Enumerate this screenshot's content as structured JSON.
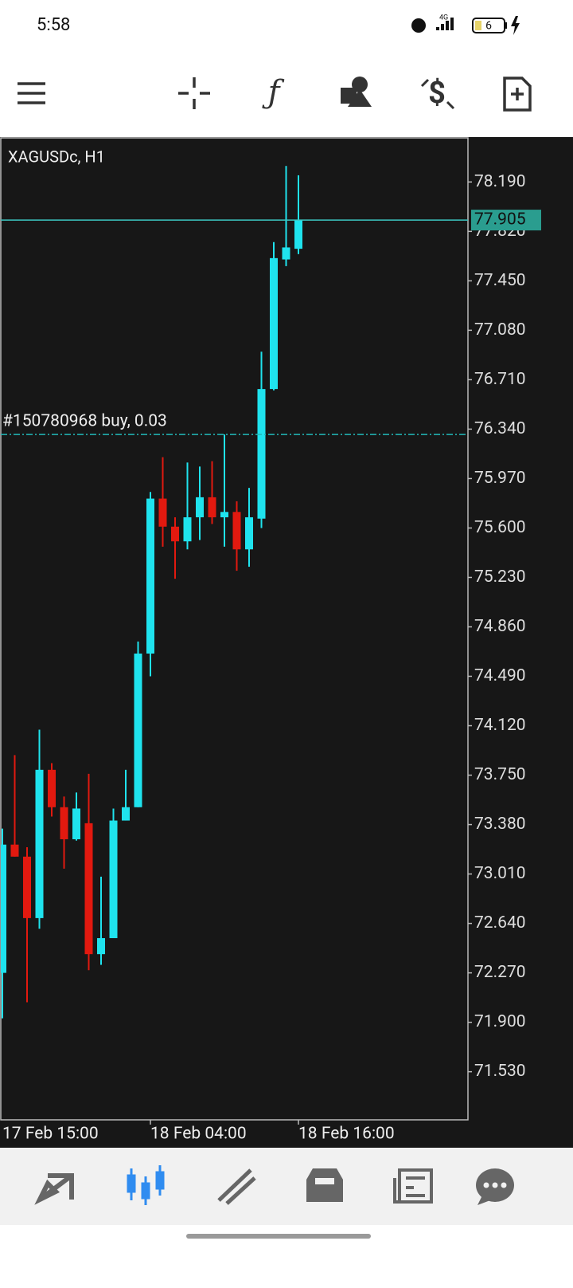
{
  "status_bar": {
    "time": "5:58",
    "battery": "6"
  },
  "chart_data": {
    "type": "candlestick",
    "title": "XAGUSDc, H1",
    "categories": [
      "17 Feb 15:00",
      null,
      null,
      null,
      null,
      null,
      null,
      null,
      null,
      null,
      null,
      null,
      "18 Feb 04:00",
      null,
      null,
      null,
      null,
      null,
      null,
      null,
      null,
      null,
      null,
      null,
      "18 Feb 16:00"
    ],
    "open": [
      72.27,
      73.23,
      73.14,
      72.68,
      73.79,
      73.51,
      73.27,
      73.39,
      72.41,
      72.53,
      73.41,
      73.51,
      74.66,
      75.82,
      75.61,
      75.5,
      75.68,
      75.83,
      75.68,
      75.72,
      75.44,
      75.67,
      76.64,
      77.61,
      77.69
    ],
    "high": [
      73.35,
      73.9,
      73.21,
      74.09,
      73.84,
      73.59,
      73.62,
      73.76,
      72.99,
      73.5,
      73.79,
      74.75,
      75.87,
      76.13,
      75.68,
      76.09,
      76.06,
      76.1,
      76.3,
      75.8,
      75.9,
      76.92,
      77.74,
      78.31,
      78.24
    ],
    "low": [
      71.93,
      73.14,
      72.05,
      72.6,
      73.44,
      73.05,
      73.26,
      72.29,
      72.33,
      72.53,
      73.41,
      73.51,
      74.49,
      75.46,
      75.22,
      75.44,
      75.51,
      75.63,
      75.46,
      75.28,
      75.31,
      75.6,
      76.63,
      77.56,
      77.65
    ],
    "close": [
      73.23,
      73.14,
      72.68,
      73.79,
      73.51,
      73.27,
      73.5,
      72.41,
      72.53,
      73.41,
      73.51,
      74.66,
      75.82,
      75.61,
      75.5,
      75.68,
      75.83,
      75.68,
      75.72,
      75.44,
      75.68,
      76.64,
      77.62,
      77.7,
      77.905
    ],
    "up_color": "#1fe3ee",
    "down_color": "#e2190f",
    "ylim": [
      71.17,
      78.52
    ],
    "yticks": [
      {
        "value": 78.19,
        "label": "78.190"
      },
      {
        "value": 77.82,
        "label": "77.820"
      },
      {
        "value": 77.45,
        "label": "77.450"
      },
      {
        "value": 77.08,
        "label": "77.080"
      },
      {
        "value": 76.71,
        "label": "76.710"
      },
      {
        "value": 76.34,
        "label": "76.340"
      },
      {
        "value": 75.97,
        "label": "75.970"
      },
      {
        "value": 75.6,
        "label": "75.600"
      },
      {
        "value": 75.23,
        "label": "75.230"
      },
      {
        "value": 74.86,
        "label": "74.860"
      },
      {
        "value": 74.49,
        "label": "74.490"
      },
      {
        "value": 74.12,
        "label": "74.120"
      },
      {
        "value": 73.75,
        "label": "73.750"
      },
      {
        "value": 73.38,
        "label": "73.380"
      },
      {
        "value": 73.01,
        "label": "73.010"
      },
      {
        "value": 72.64,
        "label": "72.640"
      },
      {
        "value": 72.27,
        "label": "72.270"
      },
      {
        "value": 71.9,
        "label": "71.900"
      },
      {
        "value": 71.53,
        "label": "71.530"
      }
    ],
    "current_price": 77.905,
    "current_price_color": "#2a9d8f",
    "order_line": {
      "label": "#150780968 buy, 0.03",
      "value": 76.3,
      "color": "#22b8b8"
    }
  }
}
